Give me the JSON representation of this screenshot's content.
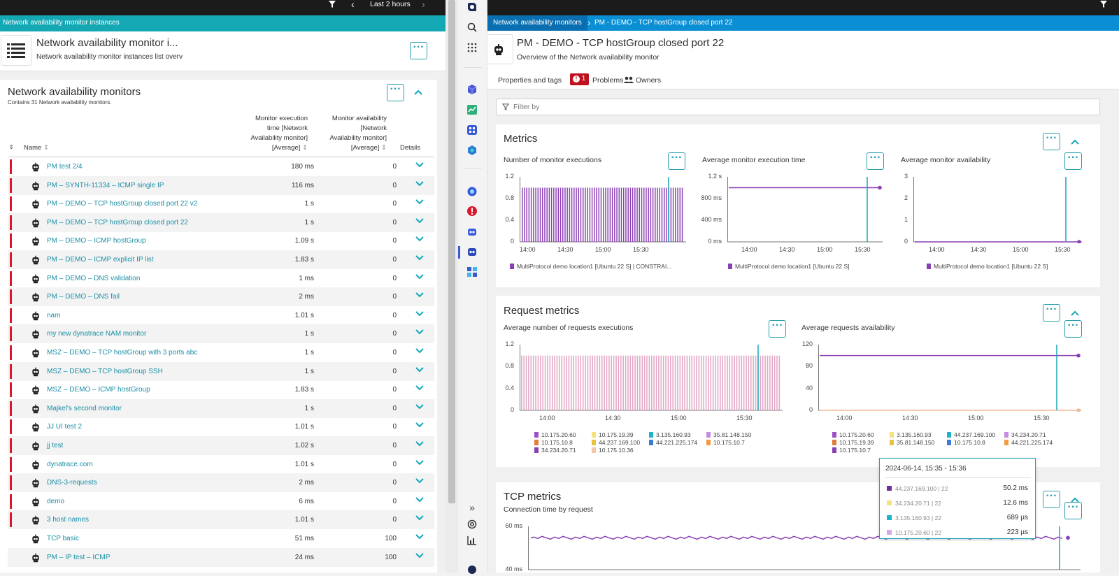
{
  "left": {
    "top": {
      "time_range": "Last 2 hours"
    },
    "breadcrumb": "Network availability monitor instances",
    "header": {
      "title": "Network availability monitor i...",
      "subtitle": "Network availability monitor instances list overv"
    },
    "panel": {
      "title": "Network availability monitors",
      "subtitle": "Contains 31 Network availability monitors.",
      "columns": {
        "name": "Name",
        "time": [
          "Monitor execution",
          "time [Network",
          "Availability monitor]",
          "[Average]"
        ],
        "avail": [
          "Monitor availability",
          "[Network",
          "Availability monitor]",
          "[Average]"
        ],
        "details": "Details"
      },
      "rows": [
        {
          "name": "PM test 2/4",
          "time": "180 ms",
          "avail": "0",
          "flag": true
        },
        {
          "name": "PM – SYNTH-11334  – ICMP single IP",
          "time": "116 ms",
          "avail": "0",
          "flag": true
        },
        {
          "name": "PM – DEMO – TCP hostGroup closed port 22 v2",
          "time": "1 s",
          "avail": "0",
          "flag": true
        },
        {
          "name": "PM – DEMO – TCP hostGroup closed port 22",
          "time": "1 s",
          "avail": "0",
          "flag": true
        },
        {
          "name": "PM – DEMO – ICMP hostGroup",
          "time": "1.09 s",
          "avail": "0",
          "flag": true
        },
        {
          "name": "PM – DEMO – ICMP explicit IP list",
          "time": "1.83 s",
          "avail": "0",
          "flag": true
        },
        {
          "name": "PM – DEMO – DNS validation",
          "time": "1 ms",
          "avail": "0",
          "flag": true
        },
        {
          "name": "PM – DEMO – DNS fail",
          "time": "2 ms",
          "avail": "0",
          "flag": true
        },
        {
          "name": "nam",
          "time": "1.01 s",
          "avail": "0",
          "flag": true
        },
        {
          "name": "my new dynatrace NAM monitor",
          "time": "1 s",
          "avail": "0",
          "flag": true
        },
        {
          "name": "MSZ – DEMO – TCP hostGroup with 3 ports abc",
          "time": "1 s",
          "avail": "0",
          "flag": true
        },
        {
          "name": "MSZ – DEMO – TCP hostGroup SSH",
          "time": "1 s",
          "avail": "0",
          "flag": true
        },
        {
          "name": "MSZ – DEMO – ICMP hostGroup",
          "time": "1.83 s",
          "avail": "0",
          "flag": true
        },
        {
          "name": "Majkel's second monitor",
          "time": "1 s",
          "avail": "0",
          "flag": true
        },
        {
          "name": "JJ UI test 2",
          "time": "1.01 s",
          "avail": "0",
          "flag": true
        },
        {
          "name": "jj test",
          "time": "1.02 s",
          "avail": "0",
          "flag": true
        },
        {
          "name": "dynatrace.com",
          "time": "1.01 s",
          "avail": "0",
          "flag": true
        },
        {
          "name": "DNS-3-requests",
          "time": "2 ms",
          "avail": "0",
          "flag": true
        },
        {
          "name": "demo",
          "time": "6 ms",
          "avail": "0",
          "flag": true
        },
        {
          "name": "3 host names",
          "time": "1.01 s",
          "avail": "0",
          "flag": true
        },
        {
          "name": "TCP basic",
          "time": "51 ms",
          "avail": "100",
          "flag": false
        },
        {
          "name": "PM – IP test – ICMP",
          "time": "24 ms",
          "avail": "100",
          "flag": false
        }
      ]
    }
  },
  "right": {
    "breadcrumb": [
      "Network availability monitors",
      "PM - DEMO - TCP hostGroup closed port 22"
    ],
    "header": {
      "title": "PM - DEMO - TCP hostGroup closed port 22",
      "subtitle": "Overview of the Network availability monitor"
    },
    "tabs": {
      "properties": "Properties and tags",
      "problems_count": "1",
      "problems": "Problems",
      "owners": "Owners"
    },
    "filter_placeholder": "Filter by",
    "metrics": {
      "title": "Metrics",
      "c1": {
        "title": "Number of monitor executions",
        "y": [
          "1.2",
          "0.8",
          "0.4",
          "0"
        ],
        "x": [
          "14:00",
          "14:30",
          "15:00",
          "15:30"
        ],
        "legend": "MultiProtocol demo location1 [Ubuntu 22 S] | CONSTRAI..."
      },
      "c2": {
        "title": "Average monitor execution time",
        "y": [
          "1.2 s",
          "800 ms",
          "400 ms",
          "0 ms"
        ],
        "x": [
          "14:00",
          "14:30",
          "15:00",
          "15:30"
        ],
        "legend": "MultiProtocol demo location1 [Ubuntu 22 S]"
      },
      "c3": {
        "title": "Average monitor availability",
        "y": [
          "3",
          "2",
          "1",
          "0"
        ],
        "x": [
          "14:00",
          "14:30",
          "15:00",
          "15:30"
        ],
        "legend": "MultiProtocol demo location1 [Ubuntu 22 S]"
      }
    },
    "request": {
      "title": "Request metrics",
      "c1": {
        "title": "Average number of requests executions",
        "y": [
          "1.2",
          "0.8",
          "0.4",
          "0"
        ],
        "x": [
          "14:00",
          "14:30",
          "15:00",
          "15:30"
        ],
        "legend": [
          "10.175.20.60",
          "10.175.19.39",
          "3.135.160.93",
          "35.81.148.150",
          "10.175.10.8",
          "44.237.169.100",
          "44.221.225.174",
          "10.175.10.7",
          "34.234.20.71",
          "10.175.10.36"
        ]
      },
      "c2": {
        "title": "Average requests availability",
        "y": [
          "120",
          "80",
          "40",
          "0"
        ],
        "x": [
          "14:00",
          "14:30",
          "15:00",
          "15:30"
        ],
        "legend": [
          "10.175.20.60",
          "3.135.160.93",
          "44.237.169.100",
          "34.234.20.71",
          "10.175.19.39",
          "35.81.148.150",
          "10.175.10.8",
          "44.221.225.174",
          "10.175.10.7"
        ]
      }
    },
    "tcp": {
      "title": "TCP metrics",
      "c1": {
        "title": "Connection time by request",
        "y": [
          "60 ms",
          "40 ms"
        ]
      }
    },
    "tooltip": {
      "time": "2024-06-14, 15:35 - 15:36",
      "rows": [
        {
          "label": "44.237.169.100 | 22",
          "value": "50.2 ms",
          "color": "#6b2fa0"
        },
        {
          "label": "34.234.20.71 | 22",
          "value": "12.6 ms",
          "color": "#f5e27a"
        },
        {
          "label": "3.135.160.93 | 22",
          "value": "689 µs",
          "color": "#1fb3c8"
        },
        {
          "label": "10.175.20.60 | 22",
          "value": "223 µs",
          "color": "#d9a8e6"
        }
      ]
    },
    "colors": {
      "purple": "#8a3fb3",
      "lavender": "#c9a6dc",
      "cyan": "#16a6ba",
      "pink": "#e2a6c4"
    }
  }
}
